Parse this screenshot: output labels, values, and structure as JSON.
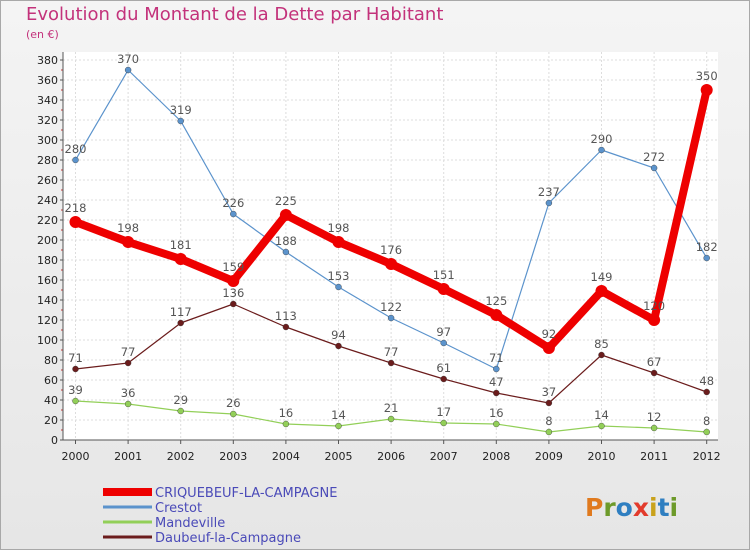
{
  "header": {
    "title": "Evolution du Montant de la Dette par Habitant",
    "unit": "(en €)"
  },
  "logo": {
    "text": "Proxiti"
  },
  "chart_data": {
    "type": "line",
    "title": "Evolution du Montant de la Dette par Habitant",
    "ylabel": "(en €)",
    "xlabel": "",
    "ylim": [
      0,
      380
    ],
    "ytick_step": 20,
    "grid": true,
    "legend_position": "bottom-left",
    "x": [
      "2000",
      "2001",
      "2002",
      "2003",
      "2004",
      "2005",
      "2006",
      "2007",
      "2008",
      "2009",
      "2010",
      "2011",
      "2012"
    ],
    "series": [
      {
        "name": "CRIQUEBEUF-LA-CAMPAGNE",
        "color": "#ee0000",
        "bold": true,
        "values": [
          218,
          198,
          181,
          159,
          225,
          198,
          176,
          151,
          125,
          92,
          149,
          120,
          350
        ]
      },
      {
        "name": "Crestot",
        "color": "#5b93cc",
        "bold": false,
        "values": [
          280,
          370,
          319,
          226,
          188,
          153,
          122,
          97,
          71,
          237,
          290,
          272,
          182
        ]
      },
      {
        "name": "Mandeville",
        "color": "#92cf58",
        "bold": false,
        "values": [
          39,
          36,
          29,
          26,
          16,
          14,
          21,
          17,
          16,
          8,
          14,
          12,
          8
        ]
      },
      {
        "name": "Daubeuf-la-Campagne",
        "color": "#6b1c1c",
        "bold": false,
        "values": [
          71,
          77,
          117,
          136,
          113,
          94,
          77,
          61,
          47,
          37,
          85,
          67,
          48
        ]
      }
    ]
  }
}
